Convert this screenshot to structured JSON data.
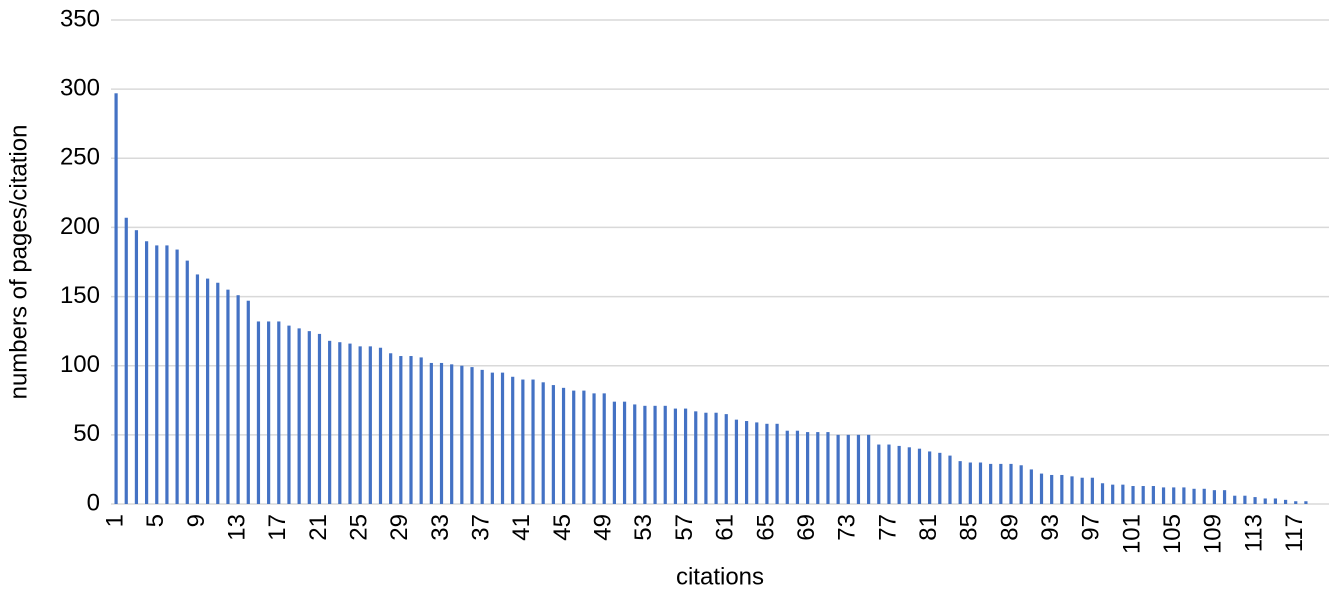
{
  "chart_data": {
    "type": "bar",
    "x_label": "citations",
    "y_label": "numbers of pages/citation",
    "categories": [
      "1",
      null,
      null,
      null,
      "5",
      null,
      null,
      null,
      "9",
      null,
      null,
      null,
      "13",
      null,
      null,
      null,
      "17",
      null,
      null,
      null,
      "21",
      null,
      null,
      null,
      "25",
      null,
      null,
      null,
      "29",
      null,
      null,
      null,
      "33",
      null,
      null,
      null,
      "37",
      null,
      null,
      null,
      "41",
      null,
      null,
      null,
      "45",
      null,
      null,
      null,
      "49",
      null,
      null,
      null,
      "53",
      null,
      null,
      null,
      "57",
      null,
      null,
      null,
      "61",
      null,
      null,
      null,
      "65",
      null,
      null,
      null,
      "69",
      null,
      null,
      null,
      "73",
      null,
      null,
      null,
      "77",
      null,
      null,
      null,
      "81",
      null,
      null,
      null,
      "85",
      null,
      null,
      null,
      "89",
      null,
      null,
      null,
      "93",
      null,
      null,
      null,
      "97",
      null,
      null,
      null,
      "101",
      null,
      null,
      null,
      "105",
      null,
      null,
      null,
      "109",
      null,
      null,
      null,
      "113",
      null,
      null,
      null,
      "117",
      null
    ],
    "values": [
      297,
      207,
      198,
      190,
      187,
      187,
      184,
      176,
      166,
      163,
      160,
      155,
      151,
      147,
      132,
      132,
      132,
      129,
      127,
      125,
      123,
      118,
      117,
      116,
      114,
      114,
      113,
      109,
      107,
      107,
      106,
      102,
      102,
      101,
      100,
      99,
      97,
      95,
      95,
      92,
      90,
      90,
      88,
      86,
      84,
      82,
      82,
      80,
      80,
      74,
      74,
      72,
      71,
      71,
      71,
      69,
      69,
      67,
      66,
      66,
      65,
      61,
      60,
      59,
      58,
      58,
      53,
      53,
      52,
      52,
      52,
      50,
      50,
      50,
      50,
      43,
      43,
      42,
      41,
      40,
      38,
      37,
      35,
      31,
      30,
      30,
      29,
      29,
      29,
      28,
      25,
      22,
      21,
      21,
      20,
      19,
      19,
      15,
      14,
      14,
      13,
      13,
      13,
      12,
      12,
      12,
      11,
      11,
      10,
      10,
      6,
      6,
      5,
      4,
      4,
      3,
      2,
      2
    ],
    "color": "#4472c4",
    "ylim": [
      0,
      350
    ],
    "yticks": [
      0,
      50,
      100,
      150,
      200,
      250,
      300,
      350
    ],
    "grid": true
  }
}
